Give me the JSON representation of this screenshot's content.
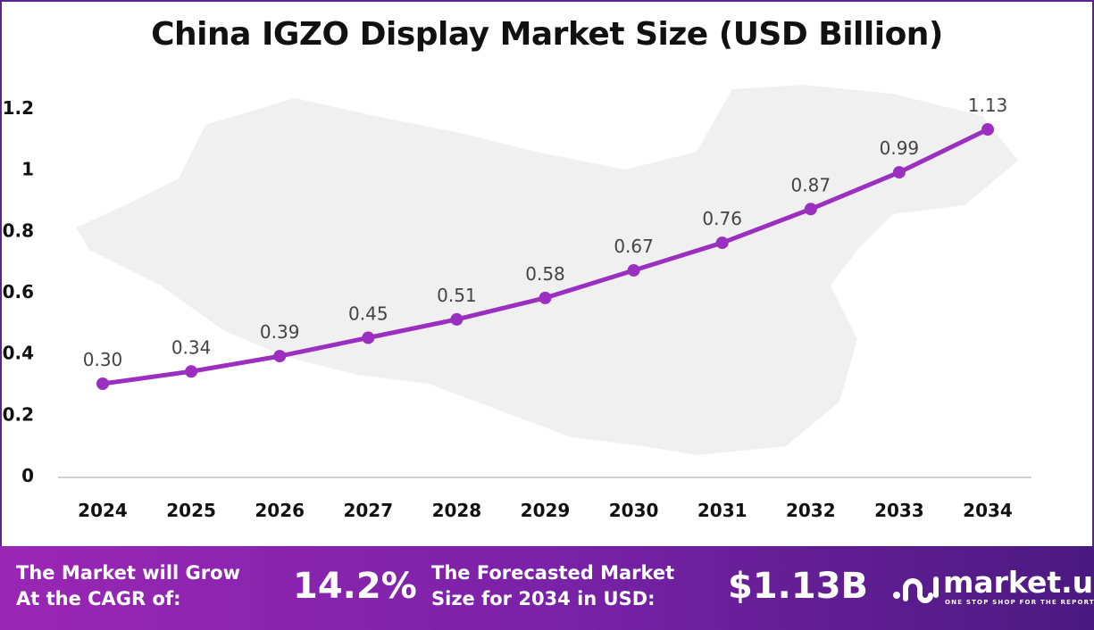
{
  "chart_data": {
    "type": "line",
    "title": "China IGZO Display Market Size (USD Billion)",
    "categories": [
      "2024",
      "2025",
      "2026",
      "2027",
      "2028",
      "2029",
      "2030",
      "2031",
      "2032",
      "2033",
      "2034"
    ],
    "values": [
      0.3,
      0.34,
      0.39,
      0.45,
      0.51,
      0.58,
      0.67,
      0.76,
      0.87,
      0.99,
      1.13
    ],
    "data_labels": [
      "0.30",
      "0.34",
      "0.39",
      "0.45",
      "0.51",
      "0.58",
      "0.67",
      "0.76",
      "0.87",
      "0.99",
      "1.13"
    ],
    "yticks": [
      "0",
      "0.2",
      "0.4",
      "0.6",
      "0.8",
      "1",
      "1.2"
    ],
    "ylim": [
      0,
      1.2
    ],
    "grid": false,
    "line_color": "#9b2fc0"
  },
  "footer": {
    "cagr_label_1": "The Market will Grow",
    "cagr_label_2": "At the CAGR of:",
    "cagr_value": "14.2%",
    "forecast_label_1": "The Forecasted Market",
    "forecast_label_2": "Size for 2034 in USD:",
    "forecast_value": "$1.13B",
    "logo_name": "market.us",
    "logo_tagline": "ONE STOP SHOP FOR THE REPORTS"
  }
}
